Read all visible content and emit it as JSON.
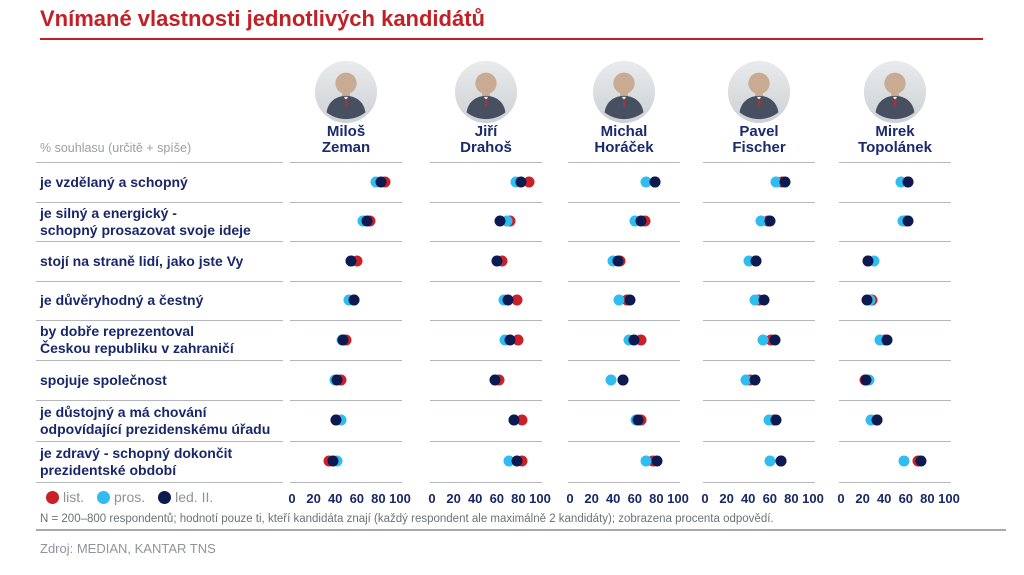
{
  "title": "Vnímané vlastnosti jednotlivých kandidátů",
  "header": {
    "percent_label": "% souhlasu (určitě + spíše)"
  },
  "legend": {
    "items": [
      {
        "id": "list",
        "label": "list.",
        "color": "#cb2026"
      },
      {
        "id": "pros",
        "label": "pros.",
        "color": "#2fbdf1"
      },
      {
        "id": "led",
        "label": "led. II.",
        "color": "#0d1a52"
      }
    ]
  },
  "footer": {
    "note": "N = 200–800 respondentů; hodnotí pouze ti, kteří kandidáta znají (každý respondent ale maximálně 2 kandidáty); zobrazena procenta odpovědí.",
    "source": "Zdroj: MEDIAN, KANTAR TNS"
  },
  "chart_data": {
    "type": "scatter",
    "title": "Vnímané vlastnosti jednotlivých kandidátů",
    "x_range": [
      0,
      100
    ],
    "x_ticks": [
      0,
      20,
      40,
      60,
      80,
      100
    ],
    "grid": "row-dividers-only",
    "legend_position": "bottom-left",
    "waves": [
      {
        "id": "list",
        "label": "list.",
        "color": "#cb2026"
      },
      {
        "id": "pros",
        "label": "pros.",
        "color": "#2fbdf1"
      },
      {
        "id": "led",
        "label": "led. II.",
        "color": "#0d1a52"
      }
    ],
    "candidates": [
      {
        "id": "zeman",
        "name_lines": [
          "Miloš",
          "Zeman"
        ]
      },
      {
        "id": "drahos",
        "name_lines": [
          "Jiří",
          "Drahoš"
        ]
      },
      {
        "id": "horacek",
        "name_lines": [
          "Michal",
          "Horáček"
        ]
      },
      {
        "id": "fischer",
        "name_lines": [
          "Pavel",
          "Fischer"
        ]
      },
      {
        "id": "topolanek",
        "name_lines": [
          "Mirek",
          "Topolánek"
        ]
      }
    ],
    "value_order_note": "values per candidate are [list, pros, led II] in % agreement",
    "rows": [
      {
        "label_lines": [
          "je vzdělaný a schopný"
        ],
        "values": [
          [
            86,
            78,
            82
          ],
          [
            90,
            78,
            82
          ],
          [
            79,
            70,
            79
          ],
          [
            71,
            66,
            74
          ],
          [
            62,
            56,
            62
          ]
        ]
      },
      {
        "label_lines": [
          "je silný a energický -",
          "schopný prosazovat svoje ideje"
        ],
        "values": [
          [
            72,
            66,
            69
          ],
          [
            72,
            69,
            63
          ],
          [
            69,
            60,
            66
          ],
          [
            58,
            52,
            60
          ],
          [
            60,
            57,
            62
          ]
        ]
      },
      {
        "label_lines": [
          "stojí na straně lidí, jako jste Vy"
        ],
        "values": [
          [
            60,
            55,
            55
          ],
          [
            65,
            60,
            60
          ],
          [
            46,
            40,
            44
          ],
          [
            47,
            41,
            47
          ],
          [
            25,
            31,
            25
          ]
        ]
      },
      {
        "label_lines": [
          "je důvěryhodný a čestný"
        ],
        "values": [
          [
            57,
            53,
            57
          ],
          [
            79,
            67,
            70
          ],
          [
            53,
            45,
            56
          ],
          [
            50,
            46,
            55
          ],
          [
            29,
            27,
            24
          ]
        ]
      },
      {
        "label_lines": [
          "by dobře reprezentoval",
          "Českou republiku v zahraničí"
        ],
        "values": [
          [
            50,
            46,
            47
          ],
          [
            80,
            68,
            72
          ],
          [
            66,
            55,
            59
          ],
          [
            61,
            54,
            65
          ],
          [
            41,
            36,
            43
          ]
        ]
      },
      {
        "label_lines": [
          "spojuje společnost"
        ],
        "values": [
          [
            45,
            40,
            42
          ],
          [
            62,
            58,
            58
          ],
          [
            49,
            38,
            49
          ],
          [
            42,
            38,
            46
          ],
          [
            22,
            26,
            23
          ]
        ]
      },
      {
        "label_lines": [
          "je důstojný a má chování",
          "odpovídající prezidenskému úřadu"
        ],
        "values": [
          [
            41,
            45,
            41
          ],
          [
            83,
            76,
            76
          ],
          [
            66,
            61,
            63
          ],
          [
            64,
            59,
            66
          ],
          [
            33,
            28,
            33
          ]
        ]
      },
      {
        "label_lines": [
          "je zdravý - schopný dokončit",
          "prezidentské období"
        ],
        "values": [
          [
            34,
            42,
            38
          ],
          [
            83,
            71,
            79
          ],
          [
            77,
            70,
            81
          ],
          [
            70,
            60,
            70
          ],
          [
            71,
            58,
            74
          ]
        ]
      }
    ]
  }
}
